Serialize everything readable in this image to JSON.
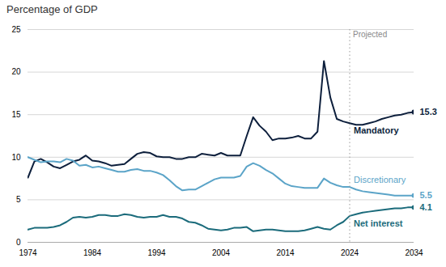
{
  "chart_data": {
    "type": "line",
    "title": "Percentage of GDP",
    "x": [
      1974,
      1975,
      1976,
      1977,
      1978,
      1979,
      1980,
      1981,
      1982,
      1983,
      1984,
      1985,
      1986,
      1987,
      1988,
      1989,
      1990,
      1991,
      1992,
      1993,
      1994,
      1995,
      1996,
      1997,
      1998,
      1999,
      2000,
      2001,
      2002,
      2003,
      2004,
      2005,
      2006,
      2007,
      2008,
      2009,
      2010,
      2011,
      2012,
      2013,
      2014,
      2015,
      2016,
      2017,
      2018,
      2019,
      2020,
      2021,
      2022,
      2023,
      2024,
      2025,
      2026,
      2027,
      2028,
      2029,
      2030,
      2031,
      2032,
      2033,
      2034
    ],
    "series": [
      {
        "name": "Mandatory",
        "color": "#0d1f3c",
        "values": [
          7.6,
          9.5,
          9.8,
          9.4,
          8.9,
          8.7,
          9.1,
          9.5,
          9.7,
          10.2,
          9.6,
          9.5,
          9.3,
          9.0,
          9.1,
          9.2,
          9.8,
          10.4,
          10.6,
          10.5,
          10.1,
          10.0,
          10.0,
          9.8,
          9.8,
          10.0,
          10.0,
          10.4,
          10.3,
          10.2,
          10.5,
          10.2,
          10.2,
          10.2,
          12.5,
          14.7,
          13.7,
          13.0,
          12.0,
          12.2,
          12.2,
          12.3,
          12.5,
          12.2,
          12.2,
          13.0,
          21.3,
          17.0,
          14.5,
          14.2,
          14.0,
          13.8,
          13.8,
          14.0,
          14.2,
          14.5,
          14.7,
          14.9,
          15.0,
          15.2,
          15.3
        ]
      },
      {
        "name": "Discretionary",
        "color": "#5ba4c8",
        "values": [
          10.0,
          9.7,
          9.4,
          9.5,
          9.5,
          9.4,
          9.8,
          9.6,
          9.0,
          9.1,
          8.8,
          8.9,
          8.7,
          8.5,
          8.3,
          8.3,
          8.5,
          8.6,
          8.4,
          8.4,
          8.2,
          7.9,
          7.3,
          6.6,
          6.1,
          6.2,
          6.2,
          6.6,
          7.0,
          7.4,
          7.6,
          7.6,
          7.6,
          7.8,
          8.9,
          9.3,
          9.0,
          8.5,
          8.1,
          7.5,
          6.9,
          6.6,
          6.5,
          6.4,
          6.4,
          6.4,
          7.5,
          7.0,
          6.7,
          6.5,
          6.5,
          6.2,
          6.0,
          5.9,
          5.8,
          5.7,
          5.6,
          5.5,
          5.5,
          5.5,
          5.5
        ]
      },
      {
        "name": "Net interest",
        "color": "#1b6b7b",
        "values": [
          1.5,
          1.7,
          1.7,
          1.7,
          1.8,
          2.0,
          2.4,
          2.9,
          3.0,
          2.9,
          3.0,
          3.2,
          3.2,
          3.1,
          3.1,
          3.3,
          3.2,
          3.0,
          2.9,
          3.0,
          3.0,
          3.2,
          3.0,
          3.0,
          2.8,
          2.4,
          2.3,
          2.0,
          1.6,
          1.5,
          1.4,
          1.5,
          1.7,
          1.7,
          1.8,
          1.3,
          1.4,
          1.5,
          1.5,
          1.4,
          1.3,
          1.3,
          1.3,
          1.4,
          1.6,
          1.8,
          1.6,
          1.5,
          2.0,
          2.4,
          3.1,
          3.3,
          3.5,
          3.6,
          3.7,
          3.8,
          3.9,
          4.0,
          4.0,
          4.1,
          4.1
        ]
      }
    ],
    "annotations": [
      {
        "type": "vline",
        "x": 2024,
        "text": "Projected"
      },
      {
        "text": "15.3",
        "x": 2034,
        "y": 15.3,
        "series": "Mandatory"
      },
      {
        "text": "5.5",
        "x": 2034,
        "y": 5.5,
        "series": "Discretionary"
      },
      {
        "text": "4.1",
        "x": 2034,
        "y": 4.1,
        "series": "Net interest"
      }
    ],
    "xlim": [
      1974,
      2034
    ],
    "ylim": [
      0,
      25
    ],
    "xticks": [
      1974,
      1984,
      1994,
      2004,
      2014,
      2024,
      2034
    ],
    "yticks": [
      0,
      5,
      10,
      15,
      20,
      25
    ],
    "grid": true
  }
}
